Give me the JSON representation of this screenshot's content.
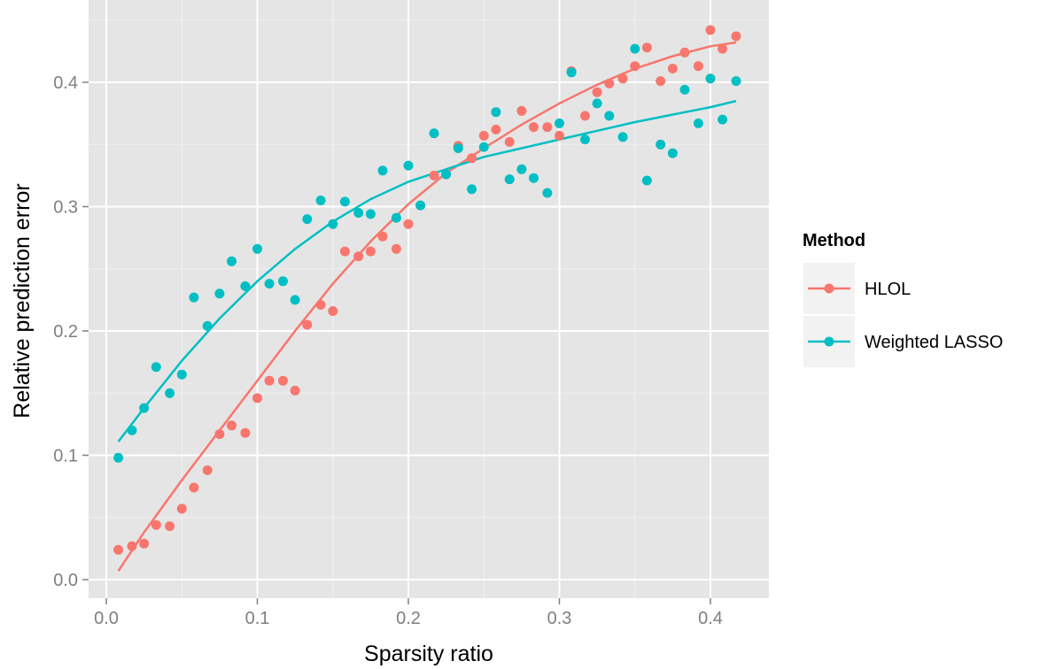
{
  "chart_data": {
    "type": "scatter",
    "title": "",
    "xlabel": "Sparsity ratio",
    "ylabel": "Relative prediction error",
    "xlim": [
      0.0,
      0.42
    ],
    "ylim": [
      0.0,
      0.44
    ],
    "x_ticks": [
      0.0,
      0.1,
      0.2,
      0.3,
      0.4
    ],
    "x_tick_labels": [
      "0.0",
      "0.1",
      "0.2",
      "0.3",
      "0.4"
    ],
    "y_ticks": [
      0.0,
      0.1,
      0.2,
      0.3,
      0.4
    ],
    "y_tick_labels": [
      "0.0",
      "0.1",
      "0.2",
      "0.3",
      "0.4"
    ],
    "grid": true,
    "legend": {
      "title": "Method",
      "placement": "right"
    },
    "series": [
      {
        "name": "HLOL",
        "color": "#F8766D",
        "x": [
          0.008,
          0.017,
          0.025,
          0.033,
          0.042,
          0.05,
          0.058,
          0.067,
          0.075,
          0.083,
          0.092,
          0.1,
          0.108,
          0.117,
          0.125,
          0.133,
          0.142,
          0.15,
          0.158,
          0.167,
          0.175,
          0.183,
          0.192,
          0.2,
          0.208,
          0.217,
          0.225,
          0.233,
          0.242,
          0.25,
          0.258,
          0.267,
          0.275,
          0.283,
          0.292,
          0.3,
          0.308,
          0.317,
          0.325,
          0.333,
          0.342,
          0.35,
          0.358,
          0.367,
          0.375,
          0.383,
          0.392,
          0.4,
          0.408,
          0.417
        ],
        "y": [
          0.024,
          0.027,
          0.029,
          0.044,
          0.043,
          0.057,
          0.074,
          0.088,
          0.117,
          0.124,
          0.118,
          0.146,
          0.16,
          0.16,
          0.152,
          0.205,
          0.221,
          0.216,
          0.264,
          0.26,
          0.264,
          0.276,
          0.266,
          0.286,
          0.301,
          0.325,
          0.326,
          0.349,
          0.339,
          0.357,
          0.362,
          0.352,
          0.377,
          0.364,
          0.364,
          0.357,
          0.409,
          0.373,
          0.392,
          0.399,
          0.403,
          0.413,
          0.428,
          0.401,
          0.411,
          0.424,
          0.413,
          0.442,
          0.427,
          0.437
        ],
        "fit_x": [
          0.008,
          0.025,
          0.05,
          0.075,
          0.1,
          0.125,
          0.15,
          0.175,
          0.2,
          0.225,
          0.25,
          0.275,
          0.3,
          0.325,
          0.35,
          0.375,
          0.4,
          0.417
        ],
        "fit_y": [
          0.007,
          0.038,
          0.08,
          0.12,
          0.16,
          0.2,
          0.238,
          0.272,
          0.302,
          0.327,
          0.347,
          0.366,
          0.383,
          0.398,
          0.411,
          0.421,
          0.429,
          0.432
        ]
      },
      {
        "name": "Weighted LASSO",
        "color": "#00BFC4",
        "x": [
          0.008,
          0.017,
          0.025,
          0.033,
          0.042,
          0.05,
          0.058,
          0.067,
          0.075,
          0.083,
          0.092,
          0.1,
          0.108,
          0.117,
          0.125,
          0.133,
          0.142,
          0.15,
          0.158,
          0.167,
          0.175,
          0.183,
          0.192,
          0.2,
          0.208,
          0.217,
          0.225,
          0.233,
          0.242,
          0.25,
          0.258,
          0.267,
          0.275,
          0.283,
          0.292,
          0.3,
          0.308,
          0.317,
          0.325,
          0.333,
          0.342,
          0.35,
          0.358,
          0.367,
          0.375,
          0.383,
          0.392,
          0.4,
          0.408,
          0.417
        ],
        "y": [
          0.098,
          0.12,
          0.138,
          0.171,
          0.15,
          0.165,
          0.227,
          0.204,
          0.23,
          0.256,
          0.236,
          0.266,
          0.238,
          0.24,
          0.225,
          0.29,
          0.305,
          0.286,
          0.304,
          0.295,
          0.294,
          0.329,
          0.291,
          0.333,
          0.301,
          0.359,
          0.326,
          0.347,
          0.314,
          0.348,
          0.376,
          0.322,
          0.33,
          0.323,
          0.311,
          0.367,
          0.408,
          0.354,
          0.383,
          0.373,
          0.356,
          0.427,
          0.321,
          0.35,
          0.343,
          0.394,
          0.367,
          0.403,
          0.37,
          0.401
        ],
        "fit_x": [
          0.008,
          0.025,
          0.05,
          0.075,
          0.1,
          0.125,
          0.15,
          0.175,
          0.2,
          0.225,
          0.25,
          0.275,
          0.3,
          0.325,
          0.35,
          0.375,
          0.4,
          0.417
        ],
        "fit_y": [
          0.111,
          0.138,
          0.176,
          0.21,
          0.24,
          0.266,
          0.288,
          0.306,
          0.32,
          0.33,
          0.34,
          0.347,
          0.354,
          0.361,
          0.368,
          0.374,
          0.38,
          0.385
        ]
      }
    ]
  }
}
